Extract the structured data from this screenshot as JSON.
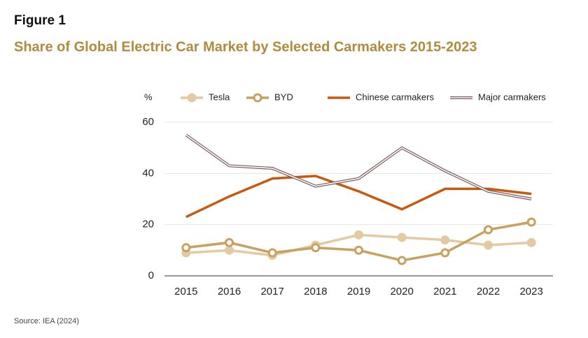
{
  "chart_data": {
    "type": "line",
    "figure_label": "Figure 1",
    "title": "Share of Global Electric Car Market by Selected Carmakers 2015-2023",
    "y_label": "%",
    "source": "Source: IEA (2024)",
    "categories": [
      "2015",
      "2016",
      "2017",
      "2018",
      "2019",
      "2020",
      "2021",
      "2022",
      "2023"
    ],
    "series": [
      {
        "name": "Tesla",
        "color": "#e3caa2",
        "marker": "filled",
        "values": [
          9,
          10,
          8,
          12,
          16,
          15,
          14,
          12,
          13
        ]
      },
      {
        "name": "BYD",
        "color": "#c8a060",
        "marker": "hollow",
        "values": [
          11,
          13,
          9,
          11,
          10,
          6,
          9,
          18,
          21
        ]
      },
      {
        "name": "Chinese carmakers",
        "color": "#c55a11",
        "marker": "none",
        "values": [
          23,
          31,
          38,
          39,
          33,
          26,
          34,
          34,
          32
        ]
      },
      {
        "name": "Major carmakers",
        "color": "#7a5a5a",
        "marker": "none",
        "style": "double",
        "values": [
          55,
          43,
          42,
          35,
          38,
          50,
          41,
          33,
          30
        ]
      }
    ],
    "ylim": [
      0,
      60
    ],
    "yticks": [
      0,
      20,
      40,
      60
    ],
    "grid": true,
    "legend": "top"
  }
}
